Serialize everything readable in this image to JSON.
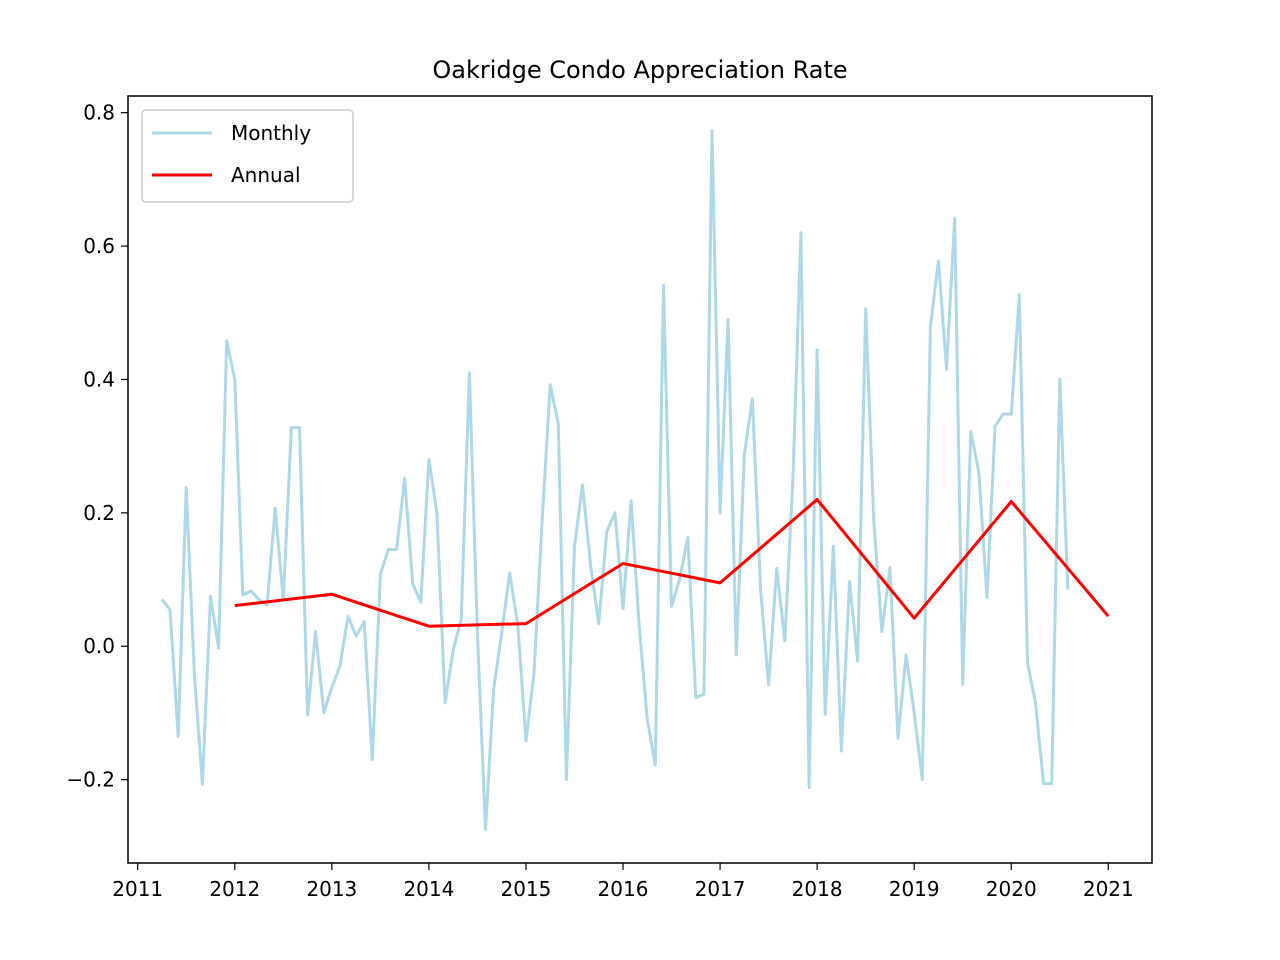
{
  "chart_data": {
    "type": "line",
    "title": "Oakridge Condo Appreciation Rate",
    "xlabel": "",
    "ylabel": "",
    "xlim": [
      2010.9,
      2021.45
    ],
    "ylim": [
      -0.325,
      0.825
    ],
    "x_ticks": [
      2011,
      2012,
      2013,
      2014,
      2015,
      2016,
      2017,
      2018,
      2019,
      2020,
      2021
    ],
    "x_tick_labels": [
      "2011",
      "2012",
      "2013",
      "2014",
      "2015",
      "2016",
      "2017",
      "2018",
      "2019",
      "2020",
      "2021"
    ],
    "y_ticks": [
      0.8,
      0.6,
      0.4,
      0.2,
      0.0,
      -0.2
    ],
    "y_tick_labels": [
      "0.8",
      "0.6",
      "0.4",
      "0.2",
      "0.0",
      "−0.2"
    ],
    "grid": false,
    "legend_position": "top-left",
    "series": [
      {
        "name": "Monthly",
        "color": "#add8e6",
        "x": [
          2011.25,
          2011.333,
          2011.417,
          2011.5,
          2011.583,
          2011.667,
          2011.75,
          2011.833,
          2011.917,
          2012.0,
          2012.083,
          2012.167,
          2012.25,
          2012.333,
          2012.417,
          2012.5,
          2012.583,
          2012.667,
          2012.75,
          2012.833,
          2012.917,
          2013.0,
          2013.083,
          2013.167,
          2013.25,
          2013.333,
          2013.417,
          2013.5,
          2013.583,
          2013.667,
          2013.75,
          2013.833,
          2013.917,
          2014.0,
          2014.083,
          2014.167,
          2014.25,
          2014.333,
          2014.417,
          2014.5,
          2014.583,
          2014.667,
          2014.75,
          2014.833,
          2014.917,
          2015.0,
          2015.083,
          2015.167,
          2015.25,
          2015.333,
          2015.417,
          2015.5,
          2015.583,
          2015.667,
          2015.75,
          2015.833,
          2015.917,
          2016.0,
          2016.083,
          2016.167,
          2016.25,
          2016.333,
          2016.417,
          2016.5,
          2016.583,
          2016.667,
          2016.75,
          2016.833,
          2016.917,
          2017.0,
          2017.083,
          2017.167,
          2017.25,
          2017.333,
          2017.417,
          2017.5,
          2017.583,
          2017.667,
          2017.75,
          2017.833,
          2017.917,
          2018.0,
          2018.083,
          2018.167,
          2018.25,
          2018.333,
          2018.417,
          2018.5,
          2018.583,
          2018.667,
          2018.75,
          2018.833,
          2018.917,
          2019.0,
          2019.083,
          2019.167,
          2019.25,
          2019.333,
          2019.417,
          2019.5,
          2019.583,
          2019.667,
          2019.75,
          2019.833,
          2019.917,
          2020.0,
          2020.083,
          2020.167,
          2020.25,
          2020.333,
          2020.417,
          2020.5,
          2020.583
        ],
        "values": [
          0.07,
          0.055,
          -0.135,
          0.238,
          -0.04,
          -0.207,
          0.075,
          -0.003,
          0.458,
          0.4,
          0.077,
          0.083,
          0.07,
          0.062,
          0.207,
          0.07,
          0.328,
          0.328,
          -0.103,
          0.022,
          -0.1,
          -0.062,
          -0.03,
          0.045,
          0.015,
          0.037,
          -0.17,
          0.108,
          0.145,
          0.145,
          0.252,
          0.094,
          0.066,
          0.28,
          0.2,
          -0.085,
          -0.005,
          0.04,
          0.41,
          0.02,
          -0.275,
          -0.065,
          0.02,
          0.11,
          0.03,
          -0.142,
          -0.04,
          0.19,
          0.392,
          0.333,
          -0.2,
          0.15,
          0.242,
          0.12,
          0.034,
          0.172,
          0.2,
          0.056,
          0.218,
          0.03,
          -0.11,
          -0.178,
          0.541,
          0.06,
          0.1,
          0.163,
          -0.077,
          -0.072,
          0.773,
          0.2,
          0.49,
          -0.013,
          0.287,
          0.371,
          0.085,
          -0.058,
          0.117,
          0.008,
          0.25,
          0.62,
          -0.212,
          0.444,
          -0.102,
          0.15,
          -0.157,
          0.097,
          -0.022,
          0.506,
          0.19,
          0.022,
          0.118,
          -0.138,
          -0.013,
          -0.1,
          -0.2,
          0.48,
          0.578,
          0.415,
          0.642,
          -0.057,
          0.322,
          0.26,
          0.073,
          0.33,
          0.348,
          0.348,
          0.527,
          -0.025,
          -0.085,
          -0.206,
          -0.206,
          0.4,
          0.085
        ]
      },
      {
        "name": "Annual",
        "color": "#ff0000",
        "x": [
          2012,
          2013,
          2014,
          2015,
          2016,
          2017,
          2018,
          2019,
          2020,
          2021
        ],
        "values": [
          0.061,
          0.078,
          0.03,
          0.034,
          0.124,
          0.095,
          0.22,
          0.042,
          0.217,
          0.045
        ]
      }
    ]
  }
}
